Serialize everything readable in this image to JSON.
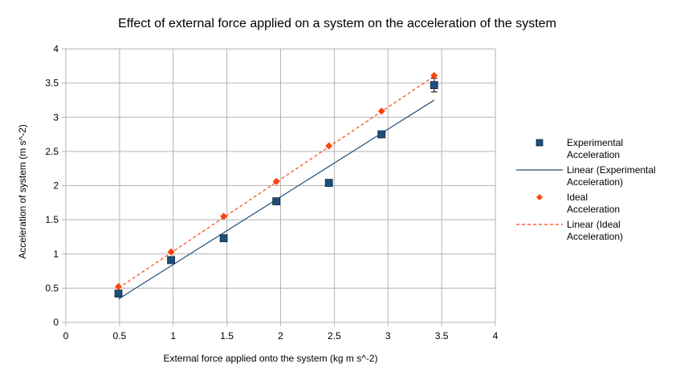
{
  "chart_data": {
    "type": "scatter",
    "title": "Effect of external force applied on a system on the acceleration of the system",
    "xlabel": "External force applied onto the system (kg m s^-2)",
    "ylabel": "Acceleration of system (m s^-2)",
    "xlim": [
      0,
      4
    ],
    "ylim": [
      0,
      4
    ],
    "x_ticks": [
      "0",
      "0.5",
      "1",
      "1.5",
      "2",
      "2.5",
      "3",
      "3.5",
      "4"
    ],
    "y_ticks": [
      "0",
      "0.5",
      "1",
      "1.5",
      "2",
      "2.5",
      "3",
      "3.5",
      "4"
    ],
    "grid": true,
    "legend_position": "right",
    "series": [
      {
        "name": "Experimental Acceleration",
        "marker": "square",
        "color": "#1f4e79",
        "x": [
          0.49,
          0.98,
          1.47,
          1.96,
          2.45,
          2.94,
          3.43
        ],
        "y": [
          0.42,
          0.91,
          1.23,
          1.77,
          2.04,
          2.75,
          3.47
        ],
        "y_error": [
          0.03,
          0.03,
          0.03,
          0.03,
          0.03,
          0.03,
          0.1
        ]
      },
      {
        "name": "Ideal Acceleration",
        "marker": "diamond",
        "color": "#ff420e",
        "x": [
          0.49,
          0.98,
          1.47,
          1.96,
          2.45,
          2.94,
          3.43
        ],
        "y": [
          0.52,
          1.03,
          1.55,
          2.06,
          2.58,
          3.09,
          3.61
        ]
      }
    ],
    "trendlines": [
      {
        "name": "Linear (Experimental Acceleration)",
        "color": "#1f4e79",
        "dashed": false,
        "x": [
          0.49,
          3.43
        ],
        "y": [
          0.34,
          3.25
        ]
      },
      {
        "name": "Linear (Ideal Acceleration)",
        "color": "#ff420e",
        "dashed": true,
        "x": [
          0.49,
          3.43
        ],
        "y": [
          0.5,
          3.6
        ]
      }
    ],
    "legend": [
      {
        "kind": "square",
        "color": "#1f4e79",
        "lines": [
          "Experimental",
          "Acceleration"
        ]
      },
      {
        "kind": "line",
        "color": "#1f4e79",
        "lines": [
          "Linear (Experimental",
          "Acceleration)"
        ]
      },
      {
        "kind": "diamond",
        "color": "#ff420e",
        "lines": [
          "Ideal",
          "Acceleration"
        ]
      },
      {
        "kind": "dashed",
        "color": "#ff420e",
        "lines": [
          "Linear (Ideal",
          "Acceleration)"
        ]
      }
    ]
  }
}
